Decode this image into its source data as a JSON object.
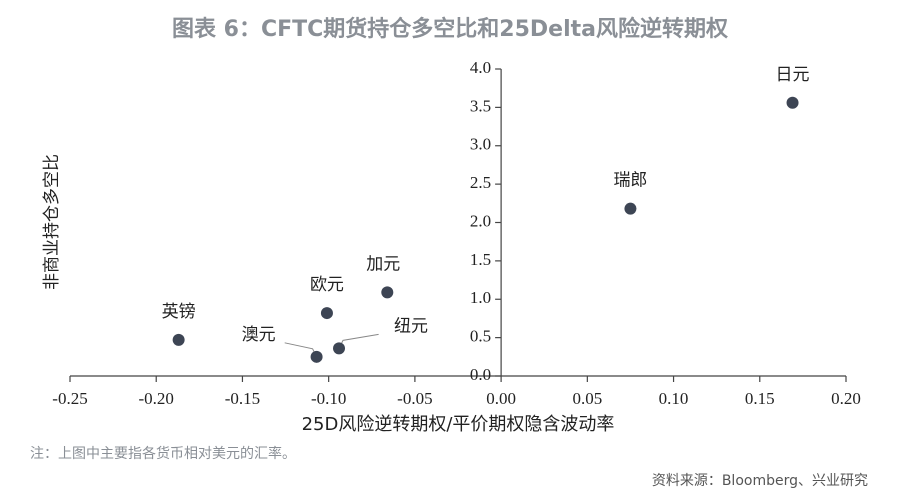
{
  "chart_data": {
    "type": "scatter",
    "title": "图表 6：CFTC期货持仓多空比和25Delta风险逆转期权",
    "x_label": "25D风险逆转期权/平价期权隐含波动率",
    "y_label": "非商业持仓多空比",
    "note": "注：上图中主要指各货币相对美元的汇率。",
    "source": "资料来源：Bloomberg、兴业研究",
    "labels": [
      "英镑",
      "欧元",
      "加元",
      "澳元",
      "纽元",
      "瑞郎",
      "日元"
    ],
    "x": [
      -0.187,
      -0.101,
      -0.066,
      -0.107,
      -0.094,
      0.075,
      0.169
    ],
    "values": [
      0.47,
      0.82,
      1.09,
      0.25,
      0.36,
      2.18,
      3.56
    ],
    "color": "#3d4554",
    "xlim": [
      -0.25,
      0.2
    ],
    "ylim": [
      0,
      4
    ],
    "xticks": [
      -0.25,
      {
        "value": -0.2,
        "label": "-0.20"
      },
      -0.15,
      {
        "value": -0.1,
        "label": "-0.10"
      },
      -0.05,
      {
        "value": 0,
        "label": "0.00"
      },
      0.05,
      {
        "value": 0.1,
        "label": "0.10"
      },
      0.15,
      {
        "value": 0.2,
        "label": "0.20"
      }
    ],
    "yticks": [
      {
        "value": 0,
        "label": "0.0"
      },
      0.5,
      {
        "value": 1,
        "label": "1.0"
      },
      1.5,
      {
        "value": 2,
        "label": "2.0"
      },
      2.5,
      {
        "value": 3,
        "label": "3.0"
      },
      3.5,
      {
        "value": 4,
        "label": "4.0"
      }
    ]
  }
}
